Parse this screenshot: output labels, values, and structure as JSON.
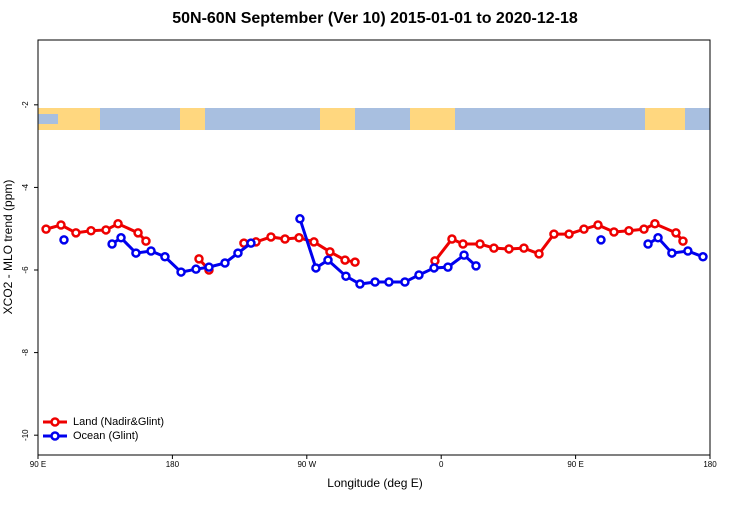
{
  "chart_data": {
    "type": "line",
    "title": "50N-60N September (Ver 10)   2015-01-01 to 2020-12-18",
    "x_label": "Longitude (deg E)",
    "y_label": "XCO2 - MLO trend (ppm)",
    "xlim": [
      90,
      540
    ],
    "xticks": [
      {
        "value": 90,
        "label": "90 E"
      },
      {
        "value": 180,
        "label": "180"
      },
      {
        "value": 270,
        "label": "90 W"
      },
      {
        "value": 360,
        "label": "0"
      },
      {
        "value": 450,
        "label": "90 E"
      },
      {
        "value": 540,
        "label": "180"
      }
    ],
    "ylim": [
      -10.48,
      -0.43
    ],
    "yticks": [
      -2,
      -4,
      -6,
      -8,
      -10
    ],
    "legend": "bottom-left",
    "series": [
      {
        "name": "Land (Nadir&Glint)",
        "color": "#ee0000",
        "x": [
          95.4,
          105.4,
          115.4,
          125.5,
          135.5,
          143.6,
          157.0,
          162.3,
          null,
          197.8,
          204.5,
          null,
          227.9,
          236.0,
          246.0,
          255.4,
          264.8,
          274.8,
          285.5,
          295.6,
          302.3,
          null,
          355.8,
          367.2,
          374.6,
          386.0,
          395.3,
          405.4,
          415.4,
          425.5,
          435.5,
          445.6,
          455.6,
          465.0,
          475.7,
          485.7,
          495.8,
          503.1,
          517.2,
          521.9
        ],
        "values": [
          -5.01,
          -4.91,
          -5.1,
          -5.05,
          -5.03,
          -4.88,
          -5.1,
          -5.3,
          null,
          -5.73,
          -6.0,
          null,
          -5.35,
          -5.32,
          -5.2,
          -5.25,
          -5.22,
          -5.32,
          -5.56,
          -5.76,
          -5.81,
          null,
          -5.78,
          -5.25,
          -5.37,
          -5.37,
          -5.47,
          -5.49,
          -5.47,
          -5.61,
          -5.13,
          -5.13,
          -5.01,
          -4.91,
          -5.08,
          -5.05,
          -5.01,
          -4.88,
          -5.1,
          -5.3
        ]
      },
      {
        "name": "Ocean (Glint)",
        "color": "#0000ee",
        "x": [
          107.4,
          null,
          139.6,
          145.6,
          155.6,
          165.7,
          175.0,
          185.8,
          195.8,
          204.5,
          215.2,
          223.9,
          232.6,
          null,
          265.4,
          276.1,
          284.2,
          296.2,
          305.6,
          315.7,
          325.0,
          335.7,
          345.1,
          355.2,
          364.5,
          375.3,
          383.3,
          null,
          467.0,
          null,
          498.5,
          505.2,
          514.5,
          525.2,
          535.3
        ],
        "values": [
          -5.27,
          null,
          -5.37,
          -5.22,
          -5.59,
          -5.54,
          -5.68,
          -6.05,
          -5.98,
          -5.93,
          -5.83,
          -5.59,
          -5.35,
          null,
          -4.76,
          -5.95,
          -5.76,
          -6.15,
          -6.34,
          -6.29,
          -6.29,
          -6.29,
          -6.12,
          -5.95,
          -5.93,
          -5.64,
          -5.9,
          null,
          -5.27,
          null,
          -5.37,
          -5.22,
          -5.59,
          -5.54,
          -5.68
        ]
      }
    ]
  }
}
